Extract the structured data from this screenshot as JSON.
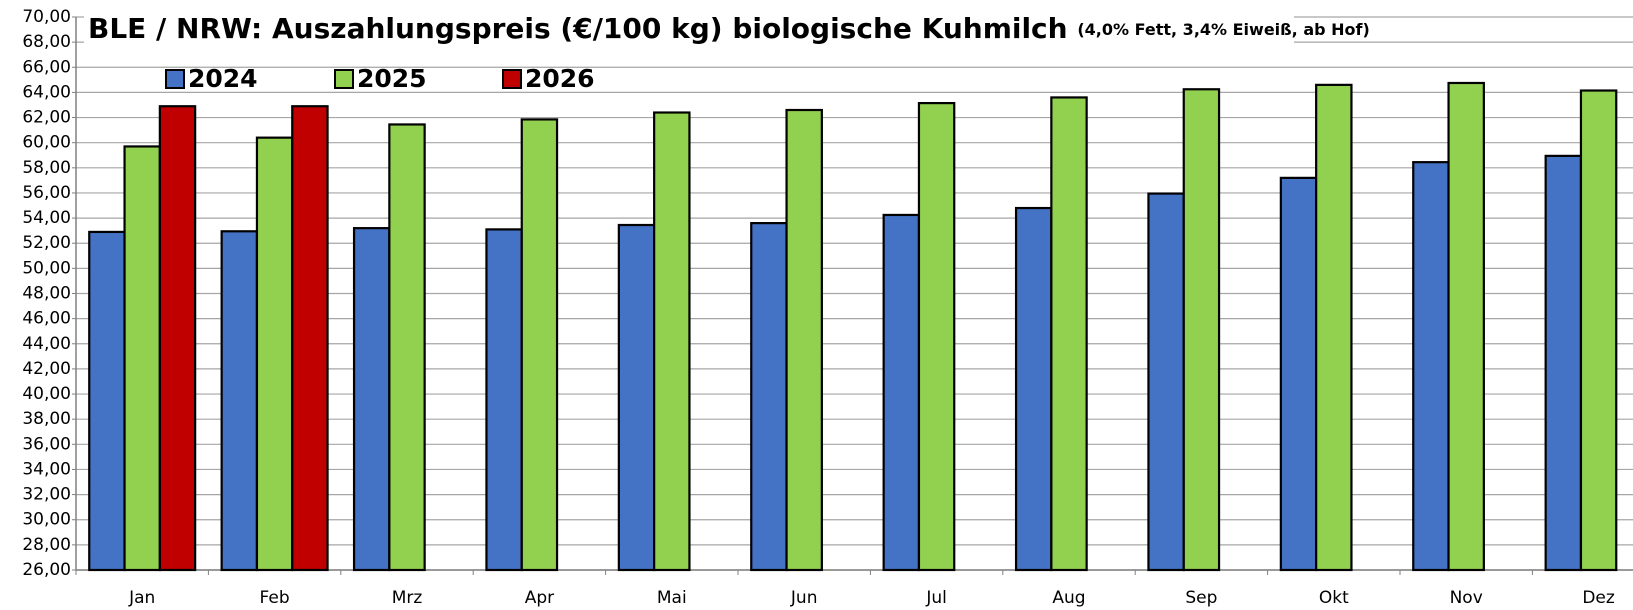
{
  "chart_data": {
    "type": "bar",
    "title": "BLE / NRW: Auszahlungspreis (€/100 kg) biologische Kuhmilch",
    "subtitle": "(4,0% Fett, 3,4% Eiweiß, ab Hof)",
    "categories": [
      "Jan",
      "Feb",
      "Mrz",
      "Apr",
      "Mai",
      "Jun",
      "Jul",
      "Aug",
      "Sep",
      "Okt",
      "Nov",
      "Dez"
    ],
    "series": [
      {
        "name": "2024",
        "color": "#4472c4",
        "values": [
          52.9,
          52.95,
          53.2,
          53.1,
          53.45,
          53.6,
          54.25,
          54.8,
          55.95,
          57.2,
          58.45,
          58.95
        ]
      },
      {
        "name": "2025",
        "color": "#92d050",
        "values": [
          59.7,
          60.4,
          61.45,
          61.85,
          62.4,
          62.6,
          63.15,
          63.6,
          64.25,
          64.6,
          64.75,
          64.15
        ]
      },
      {
        "name": "2026",
        "color": "#c00000",
        "values": [
          62.9,
          62.9,
          null,
          null,
          null,
          null,
          null,
          null,
          null,
          null,
          null,
          null
        ]
      }
    ],
    "ylim": [
      26,
      70
    ],
    "yticks": [
      {
        "value": 26,
        "label": "26,00"
      },
      {
        "value": 28,
        "label": "28,00"
      },
      {
        "value": 30,
        "label": "30,00"
      },
      {
        "value": 32,
        "label": "32,00"
      },
      {
        "value": 34,
        "label": "34,00"
      },
      {
        "value": 36,
        "label": "36,00"
      },
      {
        "value": 38,
        "label": "38,00"
      },
      {
        "value": 40,
        "label": "40,00"
      },
      {
        "value": 42,
        "label": "42,00"
      },
      {
        "value": 44,
        "label": "44,00"
      },
      {
        "value": 46,
        "label": "46,00"
      },
      {
        "value": 48,
        "label": "48,00"
      },
      {
        "value": 50,
        "label": "50,00"
      },
      {
        "value": 52,
        "label": "52,00"
      },
      {
        "value": 54,
        "label": "54,00"
      },
      {
        "value": 56,
        "label": "56,00"
      },
      {
        "value": 58,
        "label": "58,00"
      },
      {
        "value": 60,
        "label": "60,00"
      },
      {
        "value": 62,
        "label": "62,00"
      },
      {
        "value": 64,
        "label": "64,00"
      },
      {
        "value": 66,
        "label": "66,00"
      },
      {
        "value": 68,
        "label": "68,00"
      },
      {
        "value": 70,
        "label": "70,00"
      }
    ],
    "grid": true,
    "legend": "top-left"
  }
}
